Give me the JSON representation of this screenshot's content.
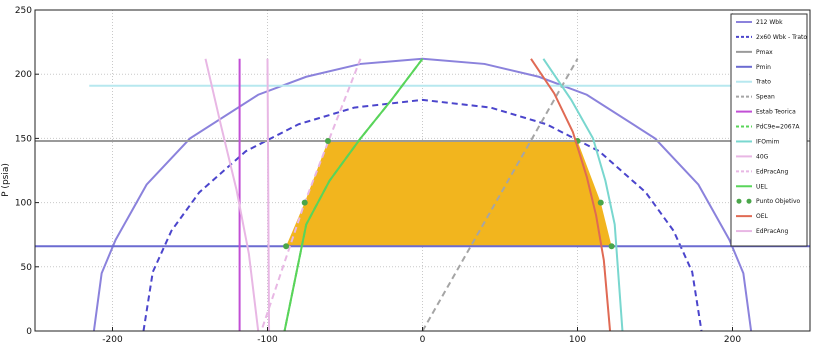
{
  "chart_data": {
    "type": "line",
    "title": "",
    "xlabel": "",
    "ylabel": "P (psia)",
    "xlim": [
      -250,
      250
    ],
    "ylim": [
      0,
      250
    ],
    "grid": true,
    "legend_placement": "top-right",
    "x_ticks": [
      -200,
      -100,
      0,
      100,
      200
    ],
    "y_ticks": [
      0,
      50,
      100,
      150,
      200,
      250
    ],
    "colors": {
      "wlim_solid": "#8b82dc",
      "wlim_dashed": "#4b45cc",
      "horizontal": "#9a9a9a",
      "pmin": "#6b6bd1",
      "trato": "#b7e8ef",
      "spean": "#a5a5a5",
      "estab": "#c24fd5",
      "green": "#59d45a",
      "cyan": "#79d7cf",
      "pink": "#e8b7e4",
      "red": "#e06a54",
      "fill": "#f2b51e"
    },
    "series": [
      {
        "name": "212 Wbk",
        "style": "solid",
        "color": "#8b82dc",
        "x": [
          -212,
          -207,
          -198,
          -178,
          -150,
          -106,
          -75,
          -40,
          0,
          40,
          75,
          106,
          150,
          178,
          198,
          207,
          212
        ],
        "y": [
          0,
          45,
          71,
          114,
          150,
          184,
          198,
          208,
          212,
          208,
          198,
          184,
          150,
          114,
          71,
          45,
          0
        ]
      },
      {
        "name": "2x60 Wbk - Trato",
        "style": "dashed",
        "color": "#4b45cc",
        "x": [
          -180,
          -174,
          -162,
          -144,
          -114,
          -80,
          -44,
          0,
          44,
          80,
          114,
          144,
          162,
          174,
          180
        ],
        "y": [
          0,
          46,
          78,
          108,
          140,
          161,
          174,
          180,
          174,
          161,
          140,
          108,
          78,
          46,
          0
        ]
      },
      {
        "name": "Pmax",
        "style": "solid",
        "color": "#9a9a9a",
        "x": [
          -250,
          250
        ],
        "y": [
          148,
          148
        ]
      },
      {
        "name": "Pmin",
        "style": "solid",
        "color": "#6b6bd1",
        "x": [
          -250,
          250
        ],
        "y": [
          66,
          66
        ]
      },
      {
        "name": "Trato",
        "style": "solid",
        "color": "#b7e8ef",
        "x": [
          -215,
          215
        ],
        "y": [
          191,
          191
        ]
      },
      {
        "name": "Spean",
        "style": "dashed",
        "color": "#a5a5a5",
        "x": [
          0,
          100
        ],
        "y": [
          0,
          212
        ]
      },
      {
        "name": "Estab Teorica",
        "style": "solid",
        "color": "#c24fd5",
        "x": [
          -118,
          -118
        ],
        "y": [
          0,
          212
        ]
      },
      {
        "name": "PdC9e=2067A",
        "style": "dashed",
        "color": "#59d45a",
        "x": [
          0,
          -20,
          -40,
          -60,
          -75,
          -89
        ],
        "y": [
          212,
          180,
          150,
          117,
          83,
          0
        ]
      },
      {
        "name": "IFOmim",
        "style": "solid",
        "color": "#79d7cf",
        "x": [
          78,
          96,
          110,
          118,
          124,
          129
        ],
        "y": [
          212,
          180,
          150,
          117,
          83,
          0
        ]
      },
      {
        "name": "40G",
        "style": "solid",
        "color": "#e8b7e4",
        "x": [
          -140,
          -130,
          -120,
          -112,
          -106
        ],
        "y": [
          212,
          160,
          110,
          60,
          0
        ]
      },
      {
        "name": "EdPracAng",
        "style": "dashed",
        "color": "#e8b7e4",
        "x": [
          -40,
          -60,
          -76,
          -90,
          -104
        ],
        "y": [
          212,
          150,
          100,
          50,
          0
        ]
      },
      {
        "name": "UEL",
        "style": "solid",
        "color": "#59d45a",
        "x": [
          0,
          -20,
          -40,
          -60,
          -75,
          -89
        ],
        "y": [
          212,
          180,
          150,
          117,
          83,
          0
        ]
      },
      {
        "name": "Punto Objetivo",
        "style": "markers",
        "color": "#4aa64a",
        "x": [
          -61,
          -76,
          -88,
          100,
          115,
          122
        ],
        "y": [
          148,
          100,
          66,
          148,
          100,
          66
        ]
      },
      {
        "name": "OEL",
        "style": "solid",
        "color": "#e06a54",
        "x": [
          70,
          85,
          97,
          106,
          112,
          117,
          121
        ],
        "y": [
          212,
          185,
          155,
          120,
          90,
          55,
          0
        ]
      },
      {
        "name": "EdPracAng",
        "style": "solid",
        "color": "#e8b7e4",
        "x": [
          -100,
          -99
        ],
        "y": [
          212,
          0
        ]
      }
    ],
    "fill_region": {
      "color": "#f2b51e",
      "points": [
        [
          -61,
          148
        ],
        [
          100,
          148
        ],
        [
          115,
          100
        ],
        [
          122,
          66
        ],
        [
          -88,
          66
        ],
        [
          -76,
          100
        ]
      ]
    }
  }
}
